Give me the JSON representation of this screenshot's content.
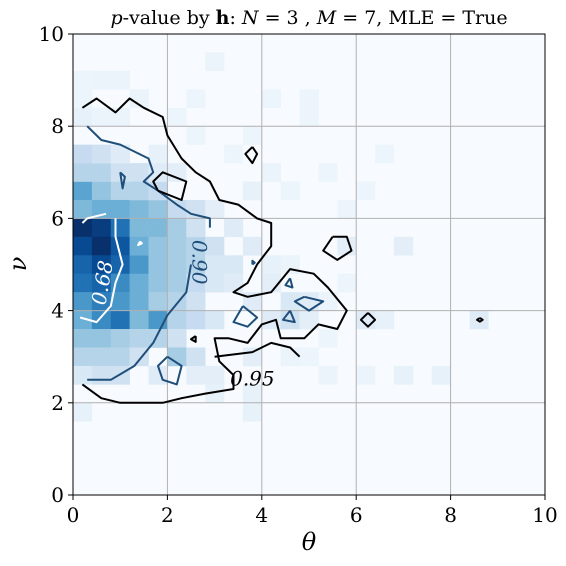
{
  "chart_data": {
    "type": "heatmap",
    "title": "p-value by h: N = 3 , M = 7, MLE = True",
    "title_parts": {
      "prefix": "p",
      "mid1": "-value by ",
      "h": "h",
      "mid2": ": ",
      "n_label": "N",
      "n_eq": " = 3 , ",
      "m_label": "M",
      "m_eq": " = 7, MLE = True"
    },
    "xlabel": "θ",
    "ylabel": "ν",
    "xlim": [
      0,
      10
    ],
    "ylim": [
      0,
      10
    ],
    "xticks": [
      "0",
      "2",
      "4",
      "6",
      "8",
      "10"
    ],
    "yticks": [
      "0",
      "2",
      "4",
      "6",
      "8",
      "10"
    ],
    "grid": true,
    "colormap": "Blues",
    "bin_size": 0.4,
    "cells": [
      [
        0.2,
        5.8,
        1.0
      ],
      [
        0.6,
        5.8,
        0.95
      ],
      [
        1.0,
        5.8,
        0.75
      ],
      [
        0.2,
        5.4,
        0.9
      ],
      [
        0.6,
        5.4,
        1.0
      ],
      [
        1.0,
        5.4,
        0.85
      ],
      [
        0.2,
        5.0,
        0.8
      ],
      [
        0.6,
        5.0,
        0.9
      ],
      [
        1.0,
        5.0,
        0.8
      ],
      [
        1.4,
        5.0,
        0.6
      ],
      [
        0.2,
        4.6,
        0.75
      ],
      [
        0.6,
        4.6,
        0.8
      ],
      [
        1.0,
        4.6,
        0.65
      ],
      [
        1.4,
        4.6,
        0.5
      ],
      [
        0.2,
        4.2,
        0.6
      ],
      [
        0.6,
        4.2,
        0.7
      ],
      [
        1.0,
        4.2,
        0.6
      ],
      [
        1.4,
        4.2,
        0.5
      ],
      [
        0.2,
        3.8,
        0.5
      ],
      [
        0.6,
        3.8,
        0.65
      ],
      [
        1.0,
        3.8,
        0.75
      ],
      [
        1.4,
        3.8,
        0.45
      ],
      [
        1.8,
        3.8,
        0.6
      ],
      [
        0.2,
        3.4,
        0.4
      ],
      [
        0.6,
        3.4,
        0.4
      ],
      [
        1.0,
        3.4,
        0.35
      ],
      [
        0.2,
        3.0,
        0.3
      ],
      [
        0.6,
        3.0,
        0.3
      ],
      [
        1.0,
        3.0,
        0.3
      ],
      [
        0.2,
        6.6,
        0.55
      ],
      [
        0.6,
        6.6,
        0.4
      ],
      [
        1.0,
        6.6,
        0.3
      ],
      [
        0.2,
        6.2,
        0.45
      ],
      [
        0.6,
        6.2,
        0.5
      ],
      [
        1.0,
        6.2,
        0.5
      ],
      [
        1.4,
        6.2,
        0.45
      ],
      [
        1.8,
        6.2,
        0.4
      ],
      [
        1.4,
        5.8,
        0.45
      ],
      [
        1.8,
        5.8,
        0.45
      ],
      [
        2.2,
        5.8,
        0.35
      ],
      [
        1.4,
        5.4,
        0.5
      ],
      [
        1.8,
        5.4,
        0.4
      ],
      [
        2.2,
        5.4,
        0.35
      ],
      [
        2.6,
        5.4,
        0.3
      ],
      [
        1.8,
        5.0,
        0.4
      ],
      [
        2.2,
        5.0,
        0.35
      ],
      [
        2.6,
        5.0,
        0.3
      ],
      [
        1.8,
        4.6,
        0.4
      ],
      [
        2.2,
        4.6,
        0.35
      ],
      [
        2.6,
        4.6,
        0.25
      ],
      [
        1.8,
        4.2,
        0.35
      ],
      [
        2.2,
        4.2,
        0.3
      ],
      [
        2.6,
        4.2,
        0.2
      ],
      [
        0.2,
        7.0,
        0.3
      ],
      [
        0.6,
        7.0,
        0.3
      ],
      [
        1.0,
        7.0,
        0.2
      ],
      [
        1.4,
        7.0,
        0.2
      ],
      [
        0.2,
        7.4,
        0.25
      ],
      [
        0.6,
        7.4,
        0.2
      ],
      [
        1.4,
        6.6,
        0.3
      ],
      [
        1.8,
        6.6,
        0.25
      ],
      [
        2.2,
        6.2,
        0.25
      ],
      [
        2.6,
        6.2,
        0.2
      ],
      [
        2.6,
        5.8,
        0.2
      ],
      [
        3.0,
        5.4,
        0.2
      ],
      [
        3.0,
        5.0,
        0.15
      ],
      [
        3.4,
        5.0,
        0.15
      ],
      [
        2.2,
        3.8,
        0.3
      ],
      [
        2.6,
        3.8,
        0.25
      ],
      [
        1.4,
        3.4,
        0.3
      ],
      [
        1.8,
        3.4,
        0.3
      ],
      [
        2.2,
        3.4,
        0.2
      ],
      [
        1.0,
        2.6,
        0.2
      ],
      [
        1.4,
        3.0,
        0.2
      ],
      [
        0.2,
        2.6,
        0.15
      ],
      [
        0.6,
        2.6,
        0.2
      ],
      [
        2.2,
        3.0,
        0.35
      ],
      [
        2.6,
        3.0,
        0.2
      ],
      [
        3.0,
        3.8,
        0.15
      ],
      [
        3.0,
        4.6,
        0.15
      ],
      [
        3.4,
        4.6,
        0.12
      ],
      [
        3.8,
        4.2,
        0.12
      ],
      [
        3.4,
        5.8,
        0.12
      ],
      [
        3.8,
        5.4,
        0.12
      ],
      [
        3.0,
        6.2,
        0.1
      ],
      [
        1.8,
        7.0,
        0.12
      ],
      [
        2.2,
        7.0,
        0.1
      ],
      [
        1.0,
        7.4,
        0.12
      ],
      [
        1.8,
        2.6,
        0.12
      ],
      [
        2.6,
        2.6,
        0.1
      ],
      [
        3.0,
        2.6,
        0.1
      ],
      [
        3.8,
        3.0,
        0.1
      ],
      [
        4.2,
        3.8,
        0.12
      ],
      [
        4.6,
        4.2,
        0.15
      ],
      [
        4.6,
        3.8,
        0.2
      ],
      [
        5.0,
        4.2,
        0.12
      ],
      [
        4.2,
        4.6,
        0.1
      ],
      [
        5.0,
        3.8,
        0.1
      ],
      [
        5.8,
        5.4,
        0.1
      ],
      [
        7.0,
        5.4,
        0.1
      ],
      [
        6.2,
        3.8,
        0.12
      ],
      [
        6.6,
        3.8,
        0.08
      ],
      [
        8.6,
        3.8,
        0.12
      ],
      [
        7.0,
        2.6,
        0.08
      ],
      [
        7.8,
        2.6,
        0.08
      ],
      [
        6.2,
        2.6,
        0.06
      ],
      [
        5.4,
        2.6,
        0.06
      ],
      [
        3.8,
        1.8,
        0.08
      ],
      [
        3.8,
        2.2,
        0.08
      ],
      [
        3.0,
        2.2,
        0.08
      ],
      [
        0.2,
        1.8,
        0.08
      ],
      [
        1.0,
        9.0,
        0.06
      ],
      [
        0.6,
        9.0,
        0.06
      ],
      [
        1.4,
        8.6,
        0.06
      ],
      [
        3.0,
        9.4,
        0.06
      ],
      [
        4.2,
        8.6,
        0.05
      ],
      [
        5.0,
        8.2,
        0.05
      ],
      [
        5.0,
        8.6,
        0.05
      ],
      [
        6.6,
        7.4,
        0.05
      ],
      [
        6.2,
        6.6,
        0.05
      ],
      [
        5.8,
        6.2,
        0.05
      ],
      [
        4.2,
        7.0,
        0.06
      ],
      [
        3.8,
        6.6,
        0.08
      ],
      [
        3.4,
        7.4,
        0.05
      ],
      [
        2.6,
        7.8,
        0.05
      ],
      [
        2.2,
        8.2,
        0.05
      ],
      [
        1.8,
        7.4,
        0.08
      ],
      [
        0.2,
        8.2,
        0.08
      ],
      [
        0.6,
        8.2,
        0.06
      ],
      [
        0.2,
        8.6,
        0.05
      ],
      [
        0.2,
        9.0,
        0.05
      ],
      [
        1.0,
        8.2,
        0.06
      ],
      [
        2.6,
        8.6,
        0.05
      ],
      [
        3.8,
        7.8,
        0.05
      ],
      [
        4.6,
        6.6,
        0.05
      ],
      [
        5.4,
        7.0,
        0.05
      ],
      [
        4.2,
        5.0,
        0.08
      ],
      [
        4.6,
        5.0,
        0.06
      ],
      [
        5.4,
        4.2,
        0.06
      ],
      [
        5.8,
        4.6,
        0.05
      ],
      [
        5.4,
        3.4,
        0.05
      ],
      [
        4.6,
        3.0,
        0.06
      ],
      [
        5.0,
        3.0,
        0.05
      ]
    ],
    "contours": [
      {
        "level": "0.68",
        "color": "#ffffff",
        "paths": [
          [
            [
              0.7,
              6.1
            ],
            [
              0.3,
              6.0
            ],
            [
              0.2,
              5.9
            ]
          ],
          [
            [
              0.9,
              6.0
            ],
            [
              0.9,
              5.6
            ],
            [
              1.05,
              5.0
            ],
            [
              0.9,
              4.6
            ],
            [
              0.8,
              4.1
            ],
            [
              0.5,
              3.75
            ],
            [
              0.15,
              3.85
            ]
          ],
          [
            [
              1.42,
              5.5
            ],
            [
              1.38,
              5.42
            ],
            [
              1.46,
              5.46
            ],
            [
              1.42,
              5.5
            ]
          ]
        ],
        "label": {
          "text": "0.68",
          "x": 0.65,
          "y": 4.6,
          "rotate": -80
        }
      },
      {
        "level": "0.90",
        "color": "#1f4e79",
        "paths": [
          [
            [
              0.3,
              8.0
            ],
            [
              0.6,
              7.7
            ],
            [
              1.0,
              7.6
            ],
            [
              1.4,
              7.4
            ],
            [
              1.6,
              7.3
            ],
            [
              1.7,
              7.0
            ],
            [
              1.5,
              6.8
            ],
            [
              1.8,
              6.6
            ],
            [
              2.2,
              6.3
            ],
            [
              2.5,
              6.1
            ],
            [
              2.9,
              6.0
            ],
            [
              2.9,
              5.8
            ]
          ],
          [
            [
              2.5,
              5.0
            ],
            [
              2.4,
              4.4
            ],
            [
              2.0,
              3.9
            ],
            [
              1.7,
              3.3
            ],
            [
              1.3,
              2.8
            ],
            [
              0.8,
              2.5
            ],
            [
              0.3,
              2.5
            ]
          ],
          [
            [
              1.0,
              7.0
            ],
            [
              1.05,
              6.65
            ],
            [
              1.1,
              6.9
            ],
            [
              1.0,
              7.0
            ]
          ],
          [
            [
              3.8,
              5.0
            ],
            [
              3.85,
              5.04
            ],
            [
              3.8,
              5.08
            ],
            [
              3.8,
              5.0
            ]
          ],
          [
            [
              4.6,
              4.7
            ],
            [
              4.5,
              4.55
            ],
            [
              4.65,
              4.5
            ],
            [
              4.6,
              4.7
            ]
          ],
          [
            [
              3.6,
              4.1
            ],
            [
              3.9,
              3.85
            ],
            [
              3.7,
              3.65
            ],
            [
              3.4,
              3.75
            ],
            [
              3.6,
              4.1
            ]
          ],
          [
            [
              4.6,
              4.0
            ],
            [
              4.45,
              3.8
            ],
            [
              4.7,
              3.75
            ],
            [
              4.6,
              4.0
            ]
          ],
          [
            [
              4.9,
              4.3
            ],
            [
              5.3,
              4.2
            ],
            [
              5.0,
              4.0
            ],
            [
              4.7,
              4.2
            ],
            [
              4.9,
              4.3
            ]
          ],
          [
            [
              2.0,
              3.0
            ],
            [
              2.3,
              2.8
            ],
            [
              2.2,
              2.4
            ],
            [
              1.9,
              2.5
            ],
            [
              1.8,
              2.8
            ],
            [
              2.0,
              3.0
            ]
          ]
        ],
        "label": {
          "text": "0.90",
          "x": 2.65,
          "y": 5.05,
          "rotate": 90
        }
      },
      {
        "level": "0.95",
        "color": "#000000",
        "paths": [
          [
            [
              0.2,
              8.4
            ],
            [
              0.5,
              8.6
            ],
            [
              0.9,
              8.3
            ],
            [
              1.2,
              8.6
            ],
            [
              1.5,
              8.4
            ],
            [
              1.9,
              8.2
            ],
            [
              2.0,
              7.8
            ],
            [
              2.3,
              7.3
            ],
            [
              2.6,
              7.0
            ],
            [
              2.9,
              6.8
            ],
            [
              3.1,
              6.4
            ],
            [
              3.5,
              6.3
            ],
            [
              3.9,
              6.0
            ],
            [
              4.2,
              5.9
            ],
            [
              4.2,
              5.4
            ],
            [
              3.9,
              5.0
            ],
            [
              3.7,
              4.6
            ],
            [
              3.4,
              4.4
            ],
            [
              3.7,
              4.3
            ],
            [
              4.2,
              4.4
            ],
            [
              4.6,
              4.9
            ],
            [
              5.1,
              4.8
            ],
            [
              5.4,
              4.5
            ],
            [
              5.8,
              4.0
            ],
            [
              5.6,
              3.6
            ],
            [
              5.2,
              3.7
            ],
            [
              4.9,
              3.4
            ],
            [
              4.4,
              3.4
            ],
            [
              4.3,
              3.8
            ],
            [
              4.0,
              3.7
            ],
            [
              3.7,
              3.3
            ],
            [
              3.3,
              3.4
            ],
            [
              3.0,
              3.4
            ],
            [
              3.1,
              2.9
            ],
            [
              3.4,
              2.6
            ],
            [
              3.4,
              2.3
            ],
            [
              2.8,
              2.2
            ],
            [
              2.3,
              2.1
            ],
            [
              1.9,
              2.0
            ],
            [
              1.0,
              2.0
            ],
            [
              0.6,
              2.1
            ],
            [
              0.2,
              2.4
            ]
          ],
          [
            [
              1.8,
              6.6
            ],
            [
              2.3,
              6.4
            ],
            [
              2.4,
              6.8
            ],
            [
              1.9,
              7.0
            ],
            [
              1.7,
              6.8
            ],
            [
              1.8,
              6.6
            ]
          ],
          [
            [
              3.8,
              7.55
            ],
            [
              3.65,
              7.4
            ],
            [
              3.8,
              7.2
            ],
            [
              3.9,
              7.4
            ],
            [
              3.8,
              7.55
            ]
          ],
          [
            [
              5.5,
              5.6
            ],
            [
              5.8,
              5.6
            ],
            [
              5.9,
              5.3
            ],
            [
              5.6,
              5.1
            ],
            [
              5.3,
              5.3
            ],
            [
              5.5,
              5.6
            ]
          ],
          [
            [
              6.25,
              3.95
            ],
            [
              6.1,
              3.8
            ],
            [
              6.25,
              3.65
            ],
            [
              6.4,
              3.8
            ],
            [
              6.25,
              3.95
            ]
          ],
          [
            [
              8.62,
              3.84
            ],
            [
              8.56,
              3.8
            ],
            [
              8.62,
              3.76
            ],
            [
              8.68,
              3.8
            ],
            [
              8.62,
              3.84
            ]
          ],
          [
            [
              2.6,
              3.45
            ],
            [
              2.5,
              3.38
            ],
            [
              2.6,
              3.32
            ],
            [
              2.6,
              3.45
            ]
          ],
          [
            [
              3.0,
              3.0
            ],
            [
              3.8,
              3.1
            ],
            [
              4.2,
              3.3
            ],
            [
              4.6,
              3.2
            ],
            [
              4.8,
              3.0
            ]
          ]
        ],
        "label": {
          "text": "0.95",
          "x": 3.8,
          "y": 2.5,
          "rotate": 0
        }
      }
    ]
  }
}
